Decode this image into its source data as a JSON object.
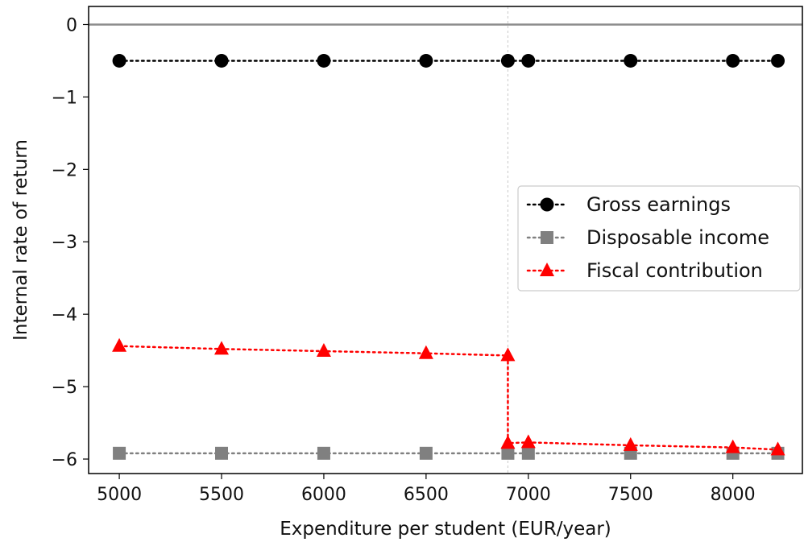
{
  "chart_data": {
    "type": "line",
    "xlabel": "Expenditure per student (EUR/year)",
    "ylabel": "Internal rate of return",
    "xlim": [
      4850,
      8340
    ],
    "ylim": [
      -6.2,
      0.25
    ],
    "xticks": [
      5000,
      5500,
      6000,
      6500,
      7000,
      7500,
      8000
    ],
    "xtick_labels": [
      "5000",
      "5500",
      "6000",
      "6500",
      "7000",
      "7500",
      "8000"
    ],
    "yticks": [
      0,
      -1,
      -2,
      -3,
      -4,
      -5,
      -6
    ],
    "ytick_labels": [
      "0",
      "−1",
      "−2",
      "−3",
      "−4",
      "−5",
      "−6"
    ],
    "reference_lines": {
      "horizontal_y": 0,
      "vertical_x": 6900
    },
    "grid": false,
    "legend_position": "center-right",
    "series": [
      {
        "name": "Gross earnings",
        "marker": "circle",
        "color": "#000000",
        "linestyle": "dotted",
        "x": [
          5000,
          5500,
          6000,
          6500,
          6900,
          7000,
          7500,
          8000,
          8220
        ],
        "y": [
          -0.5,
          -0.5,
          -0.5,
          -0.5,
          -0.5,
          -0.5,
          -0.5,
          -0.5,
          -0.5
        ]
      },
      {
        "name": "Disposable income",
        "marker": "square",
        "color": "#808080",
        "linestyle": "dotted",
        "x": [
          5000,
          5500,
          6000,
          6500,
          6900,
          7000,
          7500,
          8000,
          8220
        ],
        "y": [
          -5.92,
          -5.92,
          -5.92,
          -5.92,
          -5.92,
          -5.92,
          -5.92,
          -5.92,
          -5.92
        ]
      },
      {
        "name": "Fiscal contribution",
        "marker": "triangle",
        "color": "#ff0000",
        "linestyle": "dotted",
        "x": [
          5000,
          5500,
          6000,
          6500,
          6900,
          6900,
          7000,
          7500,
          8000,
          8220
        ],
        "y": [
          -4.44,
          -4.48,
          -4.51,
          -4.54,
          -4.57,
          -5.78,
          -5.77,
          -5.81,
          -5.84,
          -5.87
        ]
      }
    ]
  }
}
